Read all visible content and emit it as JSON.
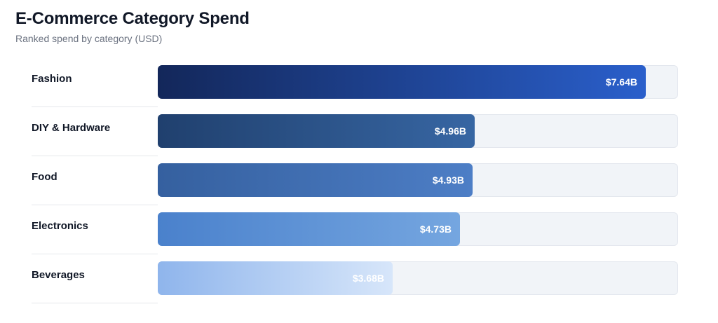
{
  "header": {
    "title": "E-Commerce Category Spend",
    "subtitle": "Ranked spend by category (USD)"
  },
  "chart_data": {
    "type": "bar",
    "orientation": "horizontal",
    "title": "E-Commerce Category Spend",
    "subtitle": "Ranked spend by category (USD)",
    "categories": [
      "Fashion",
      "DIY & Hardware",
      "Food",
      "Electronics",
      "Beverages"
    ],
    "values": [
      7.64,
      4.96,
      4.93,
      4.73,
      3.68
    ],
    "value_labels": [
      "$7.64B",
      "$4.96B",
      "$4.93B",
      "$4.73B",
      "$3.68B"
    ],
    "unit": "USD billions",
    "xlim": [
      0,
      8.15
    ],
    "grid": false,
    "legend": "none",
    "colors": [
      [
        "#13275a",
        "#2a5fcb"
      ],
      [
        "#20406e",
        "#3766a3"
      ],
      [
        "#35609f",
        "#4d7ec6"
      ],
      [
        "#4a81cc",
        "#75a6e0"
      ],
      [
        "#8fb5ec",
        "#d7e6fa"
      ]
    ]
  }
}
